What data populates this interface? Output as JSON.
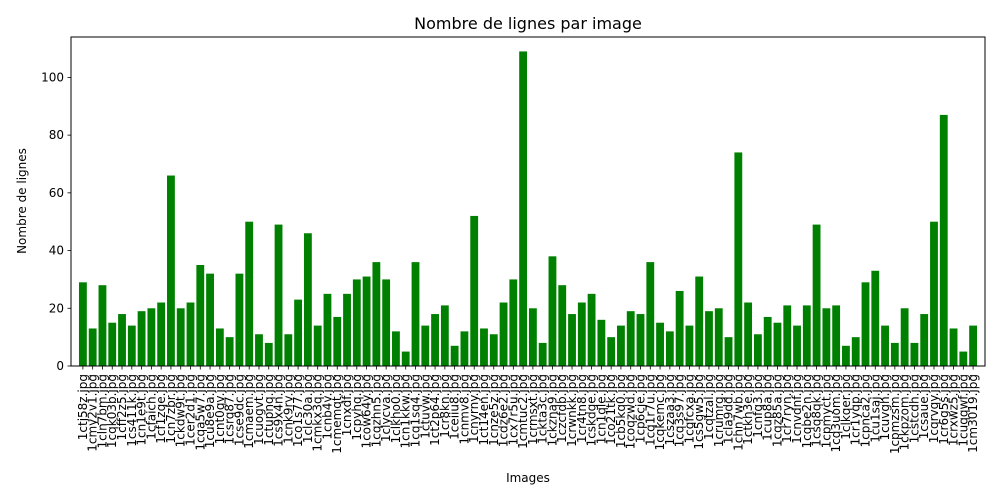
{
  "chart_data": {
    "type": "bar",
    "title": "Nombre de lignes par image",
    "xlabel": "Images",
    "ylabel": "Nombre de lignes",
    "ylim": [
      0,
      114
    ],
    "yticks": [
      0,
      20,
      40,
      60,
      80,
      100
    ],
    "bar_color": "#008000",
    "grid": false,
    "categories": [
      "1ctj58z.jpg",
      "1cmy2v1.jpg",
      "1cln7bm.jpg",
      "1cqk03b.jpg",
      "1cff2z5.jpg",
      "1cs411k.jpg",
      "1cn1e9t.jpg",
      "1cfaich.jpg",
      "1cf1zqe.jpg",
      "1cn7zbr.jpg",
      "1ckdw9t.jpg",
      "1cer2d1.jpg",
      "1cqa5w7.jpg",
      "1cu8e9a.jpg",
      "1cnt0qv.jpg",
      "1csrq87.jpg",
      "1cse9dc.jpg",
      "1cmaem.jpg",
      "1cuogvt.jpg",
      "1ctupnq.jpg",
      "1cs9x4n.jpg",
      "1cnk9rv.jpg",
      "1co1s77.jpg",
      "1clc30a.jpg",
      "1cmkx3q.jpg",
      "1cnb4v.jpg",
      "1cmemqt.jpg",
      "1cnxdf.jpg",
      "1cpyhq.jpg",
      "1cow64y.jpg",
      "1cqzhn5.jpg",
      "1clycva.jpg",
      "1clkho0.jpg",
      "1cn1kkw.jpg",
      "1cq1sq4.jpg",
      "1ctuvw.jpg",
      "1ct2p64.jpg",
      "1cr8kn.jpg",
      "1ceiiu8.jpg",
      "1cnmv8.jpg",
      "1cnyrny.jpg",
      "1ct14en.jpg",
      "1cnze5z.jpg",
      "1cdz6e2.jpg",
      "1cx7r5u.jpg",
      "1cmtuc2.jpg",
      "1crmsxt.jpg",
      "1ckta3c.jpg",
      "1ckzna9.jpg",
      "1czcfdb.jpg",
      "1crwnkk.jpg",
      "1cr4tn8.jpg",
      "1cskdge.jpg",
      "1cn1qle.jpg",
      "1co21tk.jpg",
      "1cb5kq0.jpg",
      "1coqzwd.jpg",
      "1cp6cje.jpg",
      "1cq1r7u.jpg",
      "1cqkemc.jpg",
      "1cszaa3.jpg",
      "1cq3s97.jpg",
      "1cqfcxa.jpg",
      "1cs5gw5.jpg",
      "1cqtzal.jpg",
      "1crumrg.jpg",
      "1cla9dd.jpg",
      "1chn7wb.jpg",
      "1ctkh3e.jpg",
      "1cnfq3.jpg",
      "1cup8a.jpg",
      "1cqz85a.jpg",
      "1cr7ryn.jpg",
      "1cnvdnf.jpg",
      "1cqbe2n.jpg",
      "1csq8qk.jpg",
      "1cpmyct.jpg",
      "1cq3uom.jpg",
      "1clkqer.jpg",
      "1cr1yqp.jpg",
      "1cpnca2.jpg",
      "1cu1saj.jpg",
      "1cuvgh.jpg",
      "1cpmzsm.jpg",
      "1ckpzom.jpg",
      "1cstcdh.jpg",
      "1csaue.jpg",
      "1cqrvqy.jpg",
      "1cr6g5s.jpg",
      "1crxwz5.jpg",
      "1cuqqwf.jpg",
      "1cm3019.jpg"
    ],
    "values": [
      29,
      13,
      28,
      15,
      18,
      14,
      19,
      20,
      22,
      66,
      20,
      22,
      35,
      32,
      13,
      10,
      32,
      50,
      11,
      8,
      49,
      11,
      23,
      46,
      14,
      25,
      17,
      25,
      30,
      31,
      36,
      30,
      12,
      5,
      36,
      14,
      18,
      21,
      7,
      12,
      52,
      13,
      11,
      22,
      30,
      109,
      20,
      8,
      38,
      28,
      18,
      22,
      25,
      16,
      10,
      14,
      19,
      18,
      36,
      15,
      12,
      26,
      14,
      31,
      19,
      20,
      10,
      74,
      22,
      11,
      17,
      15,
      21,
      14,
      21,
      49,
      20,
      21,
      7,
      10,
      29,
      33,
      14,
      8,
      20,
      8,
      18,
      50,
      87,
      13,
      5,
      14
    ]
  }
}
